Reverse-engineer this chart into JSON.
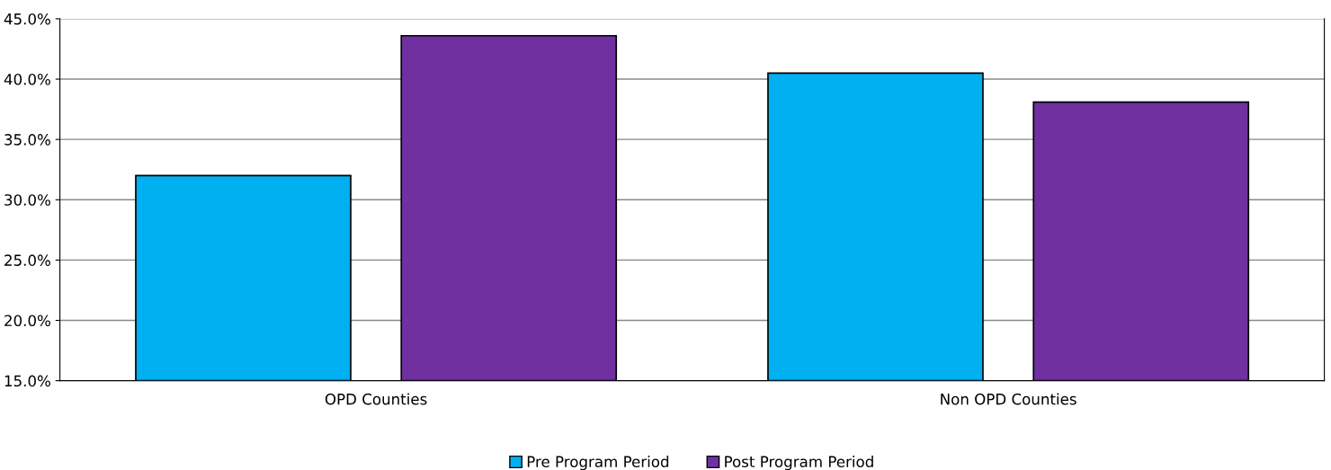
{
  "chart_data": {
    "type": "bar",
    "categories": [
      "OPD Counties",
      "Non OPD Counties"
    ],
    "series": [
      {
        "name": "Pre Program Period",
        "color": "#00b0f0",
        "values": [
          32.0,
          40.5
        ]
      },
      {
        "name": "Post Program Period",
        "color": "#7030a0",
        "values": [
          43.6,
          38.1
        ]
      }
    ],
    "ylim": [
      15,
      45
    ],
    "yticks": [
      {
        "value": 15,
        "label": "15.0%"
      },
      {
        "value": 20,
        "label": "20.0%"
      },
      {
        "value": 25,
        "label": "25.0%"
      },
      {
        "value": 30,
        "label": "30.0%"
      },
      {
        "value": 35,
        "label": "35.0%"
      },
      {
        "value": 40,
        "label": "40.0%"
      },
      {
        "value": 45,
        "label": "45.0%"
      }
    ],
    "grid": "y",
    "legend": "bottom"
  }
}
